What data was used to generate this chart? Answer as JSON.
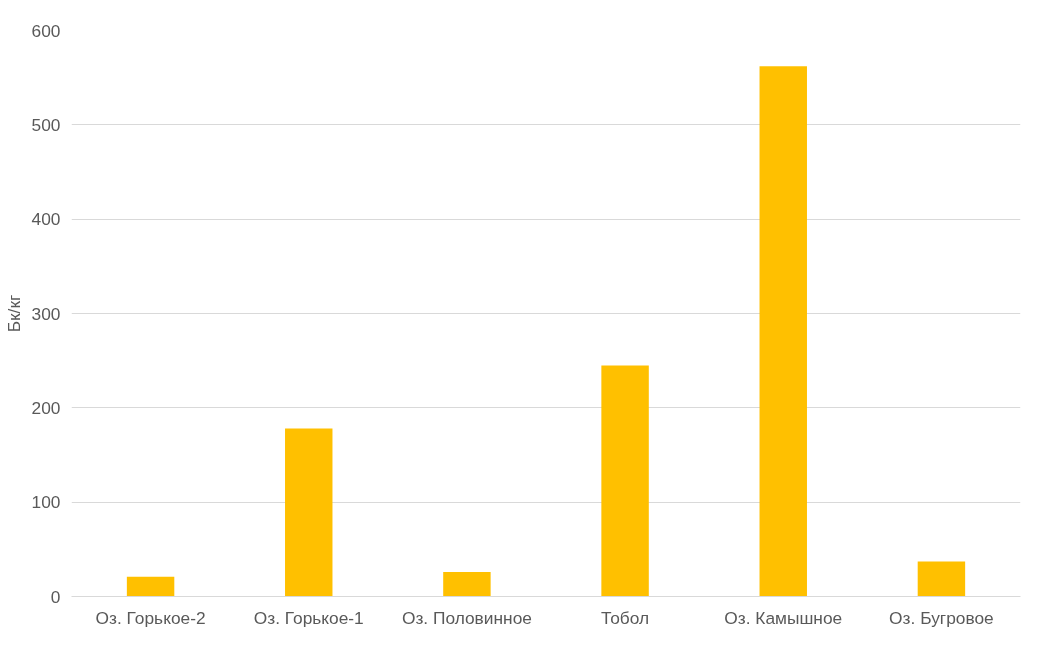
{
  "chart_data": {
    "type": "bar",
    "ylabel": "Бк/кг",
    "categories": [
      "Оз. Горькое-2",
      "Оз. Горькое-1",
      "Оз. Половинное",
      "Тобол",
      "Оз. Камышное",
      "Оз. Бугровое"
    ],
    "values": [
      21,
      178,
      26,
      245,
      562,
      37
    ],
    "color": "#ffc000",
    "ylim": [
      0,
      600
    ],
    "yticks": [
      0,
      100,
      200,
      300,
      400,
      500,
      600
    ],
    "grid": "y"
  }
}
